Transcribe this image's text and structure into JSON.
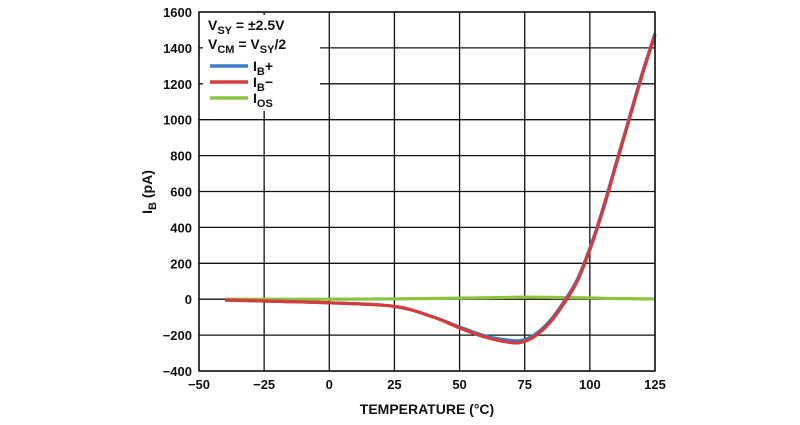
{
  "chart_data": {
    "type": "line",
    "xlabel": "TEMPERATURE (°C)",
    "ylabel": "I",
    "ylabel_sub": "B",
    "ylabel_unit": " (pA)",
    "xlim": [
      -50,
      125
    ],
    "ylim": [
      -400,
      1600
    ],
    "xticks": [
      -50,
      -25,
      0,
      25,
      50,
      75,
      100,
      125
    ],
    "yticks": [
      -400,
      -200,
      0,
      200,
      400,
      600,
      800,
      1000,
      1200,
      1400,
      1600
    ],
    "xtick_labels": [
      "−50",
      "−25",
      "0",
      "25",
      "50",
      "75",
      "100",
      "125"
    ],
    "ytick_labels": [
      "−400",
      "−200",
      "0",
      "200",
      "400",
      "600",
      "800",
      "1000",
      "1200",
      "1400",
      "1600"
    ],
    "grid": true,
    "legend_placement": "top-left",
    "annotations": [
      {
        "main": "V",
        "sub": "SY",
        "rest": " = ±2.5V"
      },
      {
        "main": "V",
        "sub": "CM",
        "rest": " = V",
        "sub2": "SY",
        "rest2": "/2"
      }
    ],
    "x": [
      -40,
      -25,
      0,
      25,
      40,
      50,
      60,
      70,
      75,
      80,
      85,
      90,
      95,
      100,
      105,
      110,
      115,
      120,
      125
    ],
    "series": [
      {
        "name": "IB+",
        "label_main": "I",
        "label_sub": "B",
        "label_rest": "+",
        "color": "#3a7cc7",
        "values": [
          -5,
          -10,
          -20,
          -40,
          -100,
          -155,
          -205,
          -230,
          -225,
          -185,
          -115,
          -15,
          105,
          285,
          505,
          755,
          1005,
          1255,
          1480
        ]
      },
      {
        "name": "IB−",
        "label_main": "I",
        "label_sub": "B",
        "label_rest": "−",
        "color": "#d63a3a",
        "values": [
          -5,
          -10,
          -20,
          -40,
          -100,
          -160,
          -212,
          -242,
          -235,
          -195,
          -125,
          -25,
          95,
          275,
          495,
          745,
          995,
          1245,
          1470
        ]
      },
      {
        "name": "IOS",
        "label_main": "I",
        "label_sub": "OS",
        "label_rest": "",
        "color": "#8cc43f",
        "values": [
          0,
          0,
          0,
          2,
          4,
          6,
          8,
          10,
          11,
          11,
          10,
          9,
          8,
          7,
          5,
          4,
          3,
          2,
          1
        ]
      }
    ]
  }
}
